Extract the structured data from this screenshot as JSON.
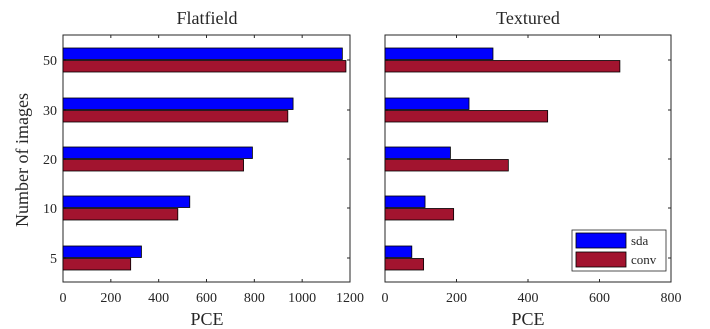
{
  "chart_data": [
    {
      "type": "bar",
      "orientation": "horizontal",
      "title": "Flatfield",
      "xlabel": "PCE",
      "ylabel": "Number of images",
      "categories": [
        "5",
        "10",
        "20",
        "30",
        "50"
      ],
      "xlim": [
        0,
        1200
      ],
      "xticks": [
        "0",
        "200",
        "400",
        "600",
        "800",
        "1000",
        "1200"
      ],
      "series": [
        {
          "name": "sda",
          "color": "#0000ff",
          "values": [
            328,
            530,
            792,
            962,
            1168
          ]
        },
        {
          "name": "conv",
          "color": "#a2142f",
          "values": [
            283,
            480,
            755,
            940,
            1183
          ]
        }
      ]
    },
    {
      "type": "bar",
      "orientation": "horizontal",
      "title": "Textured",
      "xlabel": "PCE",
      "categories": [
        "5",
        "10",
        "20",
        "30",
        "50"
      ],
      "xlim": [
        0,
        800
      ],
      "xticks": [
        "0",
        "200",
        "400",
        "600",
        "800"
      ],
      "legend": {
        "placement": "bottom-right",
        "entries": [
          "sda",
          "conv"
        ]
      },
      "series": [
        {
          "name": "sda",
          "color": "#0000ff",
          "values": [
            75,
            112,
            183,
            235,
            302
          ]
        },
        {
          "name": "conv",
          "color": "#a2142f",
          "values": [
            108,
            192,
            345,
            455,
            657
          ]
        }
      ]
    }
  ]
}
